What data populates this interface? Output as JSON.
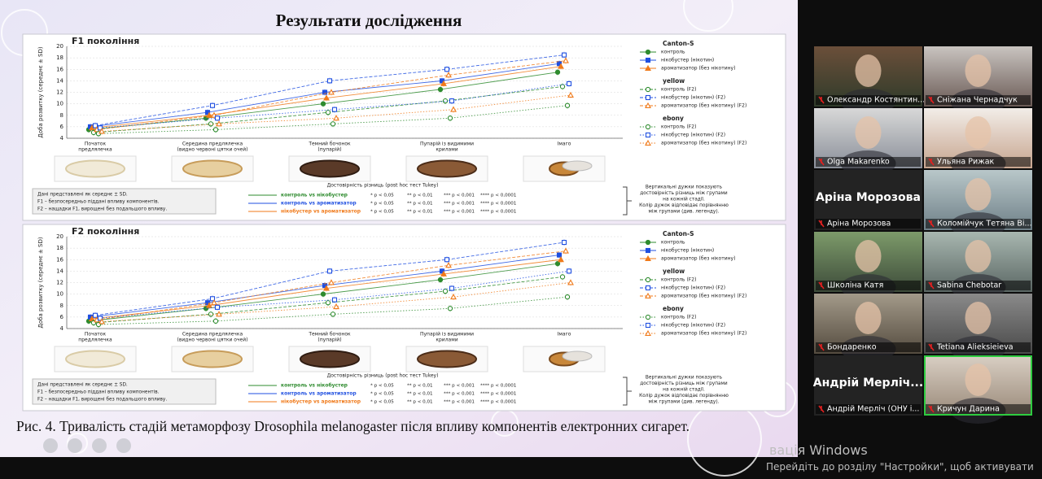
{
  "slide": {
    "title": "Результати дослідження",
    "charts": [
      {
        "type": "line",
        "title": "F1 покоління",
        "ylabel": "Доба розвитку (середнє ± SD)",
        "ylim": [
          4,
          20
        ],
        "yticks": [
          4,
          6,
          8,
          10,
          12,
          14,
          16,
          18,
          20
        ],
        "grid": true,
        "categories": [
          [
            "Початок",
            "предлялечка"
          ],
          [
            "Середина предлялечка",
            "(видно червоні цятки очей)"
          ],
          [
            "Темний бочонок",
            "(пупарій)"
          ],
          [
            "Пупарій із видимими",
            "крилами"
          ],
          [
            "Імаго"
          ]
        ],
        "groups": [
          {
            "name": "Canton-S",
            "dash": "solid",
            "filled": true,
            "series": [
              {
                "name": "контроль",
                "color": "#2e8b2e",
                "marker": "circle",
                "values": [
                  5.5,
                  7.5,
                  10,
                  12.5,
                  15.5
                ]
              },
              {
                "name": "нікобустер (нікотин)",
                "color": "#1f4fe0",
                "marker": "square",
                "values": [
                  6,
                  8.5,
                  12,
                  14,
                  17
                ]
              },
              {
                "name": "ароматизатор (без нікотину)",
                "color": "#f07a1a",
                "marker": "triangle",
                "values": [
                  5.8,
                  8,
                  11,
                  13.5,
                  16.5
                ]
              }
            ]
          },
          {
            "name": "yellow",
            "dash": "dashed",
            "filled": false,
            "series": [
              {
                "name": "контроль (F2)",
                "color": "#2e8b2e",
                "marker": "circle",
                "values": [
                  5,
                  6.5,
                  8.5,
                  10.5,
                  13
                ]
              },
              {
                "name": "нікобустер (нікотин) (F2)",
                "color": "#1f4fe0",
                "marker": "square",
                "values": [
                  6.2,
                  9.7,
                  14,
                  16,
                  18.5
                ]
              },
              {
                "name": "ароматизатор (без нікотину) (F2)",
                "color": "#f07a1a",
                "marker": "triangle",
                "values": [
                  5.5,
                  8,
                  12,
                  15,
                  17.5
                ]
              }
            ]
          },
          {
            "name": "ebony",
            "dash": "dotted",
            "filled": false,
            "series": [
              {
                "name": "контроль (F2)",
                "color": "#2e8b2e",
                "marker": "circle",
                "values": [
                  4.8,
                  5.5,
                  6.5,
                  7.5,
                  9.7
                ]
              },
              {
                "name": "нікобустер (нікотин) (F2)",
                "color": "#1f4fe0",
                "marker": "square",
                "values": [
                  5.8,
                  7.5,
                  9,
                  10.5,
                  13.5
                ]
              },
              {
                "name": "ароматизатор (без нікотину) (F2)",
                "color": "#f07a1a",
                "marker": "triangle",
                "values": [
                  5.2,
                  6.5,
                  7.5,
                  9,
                  11.5
                ]
              }
            ]
          }
        ]
      },
      {
        "type": "line",
        "title": "F2 покоління",
        "ylabel": "Доба розвитку (середнє ± SD)",
        "ylim": [
          4,
          20
        ],
        "yticks": [
          4,
          6,
          8,
          10,
          12,
          14,
          16,
          18,
          20
        ],
        "grid": true,
        "categories": [
          [
            "Початок",
            "предлялечка"
          ],
          [
            "Середина предлялечка",
            "(видно червоні цятки очей)"
          ],
          [
            "Темний бочонок",
            "(пупарій)"
          ],
          [
            "Пупарій із видимими",
            "крилами"
          ],
          [
            "Імаго"
          ]
        ],
        "groups": [
          {
            "name": "Canton-S",
            "dash": "solid",
            "filled": true,
            "series": [
              {
                "name": "контроль",
                "color": "#2e8b2e",
                "marker": "circle",
                "values": [
                  5.3,
                  7.5,
                  10,
                  12.5,
                  15.3
                ]
              },
              {
                "name": "нікобустер (нікотин)",
                "color": "#1f4fe0",
                "marker": "square",
                "values": [
                  6,
                  8.5,
                  11.5,
                  14,
                  16.8
                ]
              },
              {
                "name": "ароматизатор (без нікотину)",
                "color": "#f07a1a",
                "marker": "triangle",
                "values": [
                  5.7,
                  8,
                  11,
                  13.5,
                  16
                ]
              }
            ]
          },
          {
            "name": "yellow",
            "dash": "dashed",
            "filled": false,
            "series": [
              {
                "name": "контроль (F2)",
                "color": "#2e8b2e",
                "marker": "circle",
                "values": [
                  5,
                  6.5,
                  8.5,
                  10.5,
                  13
                ]
              },
              {
                "name": "нікобустер (нікотин) (F2)",
                "color": "#1f4fe0",
                "marker": "square",
                "values": [
                  6.3,
                  9.2,
                  14,
                  16,
                  19
                ]
              },
              {
                "name": "ароматизатор (без нікотину) (F2)",
                "color": "#f07a1a",
                "marker": "triangle",
                "values": [
                  5.5,
                  8.5,
                  12,
                  15,
                  17.5
                ]
              }
            ]
          },
          {
            "name": "ebony",
            "dash": "dotted",
            "filled": false,
            "series": [
              {
                "name": "контроль (F2)",
                "color": "#2e8b2e",
                "marker": "circle",
                "values": [
                  4.7,
                  5.3,
                  6.5,
                  7.5,
                  9.5
                ]
              },
              {
                "name": "нікобустер (нікотин) (F2)",
                "color": "#1f4fe0",
                "marker": "square",
                "values": [
                  5.8,
                  7.7,
                  9,
                  11,
                  14
                ]
              },
              {
                "name": "ароматизатор (без нікотину) (F2)",
                "color": "#f07a1a",
                "marker": "triangle",
                "values": [
                  5.2,
                  6.5,
                  7.8,
                  9.5,
                  12
                ]
              }
            ]
          }
        ]
      }
    ],
    "notes": [
      "Дані представлені як середнє ± SD.",
      "F1 – безпосередньо піддані впливу компонентів.",
      "F2 – нащадки F1, вирощені без подальшого впливу."
    ],
    "significance": {
      "title": "Достовірність різниць (post hoc тест Tukey)",
      "comparisons": [
        {
          "name": "контроль vs нікобустер",
          "color": "#2e8b2e"
        },
        {
          "name": "контроль vs ароматизатор",
          "color": "#1f4fe0"
        },
        {
          "name": "нікобустер vs ароматизатор",
          "color": "#f07a1a"
        }
      ],
      "levels": [
        "* p < 0,05",
        "** p < 0,01",
        "*** p < 0,001",
        "**** p < 0,0001"
      ]
    },
    "bracket_note": [
      "Вертикальні дужки показують",
      "достовірність різниць між групами",
      "на кожній стадії.",
      "Колір дужок відповідає порівнянню",
      "між групами (див. легенду)."
    ],
    "caption": "Рис. 4. Тривалість стадій метаморфозу Drosophila melanogaster після впливу компонентів електронних сигарет."
  },
  "participants": [
    {
      "name": "Олександр Костянтин..."
    },
    {
      "name": "Сніжана Чернадчук"
    },
    {
      "name": "Olga Makarenko"
    },
    {
      "name": "Ульяна Рижак"
    },
    {
      "name": "Аріна Морозова",
      "display_name": "Аріна Морозова"
    },
    {
      "name": "Коломійчук Тетяна Ві..."
    },
    {
      "name": "Школіна Катя"
    },
    {
      "name": "Sabina Chebotar"
    },
    {
      "name": "Бондаренко"
    },
    {
      "name": "Tetiana Alieksieieva"
    },
    {
      "name": "Андрій Мерліч (ОНУ і...",
      "display_name": "Андрій Мерліч..."
    },
    {
      "name": "Кричун Дарина",
      "active": true
    }
  ],
  "watermark": [
    "вація Windows",
    "Перейдіть до розділу \"Настройки\", щоб активувати"
  ]
}
